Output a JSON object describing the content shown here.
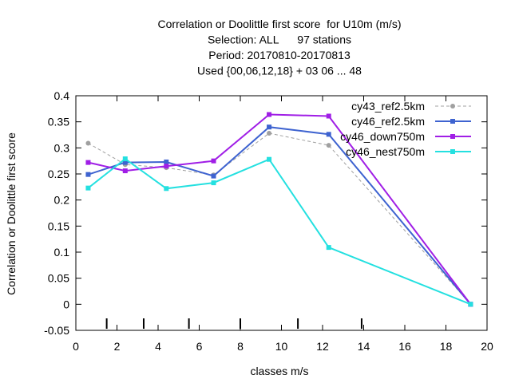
{
  "chart_data": {
    "type": "line",
    "title_lines": [
      "Correlation or Doolittle first score  for U10m (m/s)",
      "Selection: ALL      97 stations",
      "Period: 20170810-20170813",
      "Used {00,06,12,18} + 03 06 ... 48"
    ],
    "xlabel": "classes m/s",
    "ylabel": "Correlation or Doolittle first score",
    "xlim": [
      0,
      20
    ],
    "ylim": [
      -0.05,
      0.4
    ],
    "xticks": [
      0,
      2,
      4,
      6,
      8,
      10,
      12,
      14,
      16,
      18,
      20
    ],
    "xtick_labels": [
      "0",
      "2",
      "4",
      "6",
      "8",
      "10",
      "12",
      "14",
      "16",
      "18",
      "20"
    ],
    "yticks": [
      -0.05,
      0,
      0.05,
      0.1,
      0.15,
      0.2,
      0.25,
      0.3,
      0.35,
      0.4
    ],
    "ytick_labels": [
      "-0.05",
      "0",
      "0.05",
      "0.1",
      "0.15",
      "0.2",
      "0.25",
      "0.3",
      "0.35",
      "0.4"
    ],
    "class_boundaries": [
      1.5,
      3.3,
      5.5,
      8.0,
      10.8,
      13.9
    ],
    "grid": false,
    "legend_position": "top-right",
    "series": [
      {
        "name": "cy43_ref2.5km",
        "color": "#a0a0a0",
        "dashed": true,
        "marker": "circle",
        "x": [
          0.6,
          2.4,
          4.4,
          6.7,
          9.4,
          12.3,
          19.2
        ],
        "y": [
          0.309,
          0.268,
          0.262,
          0.248,
          0.328,
          0.305,
          0.0
        ]
      },
      {
        "name": "cy46_ref2.5km",
        "color": "#3e63d0",
        "dashed": false,
        "marker": "square",
        "x": [
          0.6,
          2.4,
          4.4,
          6.7,
          9.4,
          12.3,
          19.2
        ],
        "y": [
          0.249,
          0.272,
          0.273,
          0.246,
          0.34,
          0.326,
          0.0
        ]
      },
      {
        "name": "cy46_down750m",
        "color": "#a01ee6",
        "dashed": false,
        "marker": "square",
        "x": [
          0.6,
          2.4,
          4.4,
          6.7,
          9.4,
          12.3,
          19.2
        ],
        "y": [
          0.272,
          0.256,
          0.265,
          0.275,
          0.364,
          0.361,
          0.0
        ]
      },
      {
        "name": "cy46_nest750m",
        "color": "#24e0e0",
        "dashed": false,
        "marker": "square",
        "x": [
          0.6,
          2.4,
          4.4,
          6.7,
          9.4,
          12.3,
          19.2
        ],
        "y": [
          0.223,
          0.279,
          0.222,
          0.233,
          0.278,
          0.109,
          0.0
        ]
      }
    ]
  }
}
